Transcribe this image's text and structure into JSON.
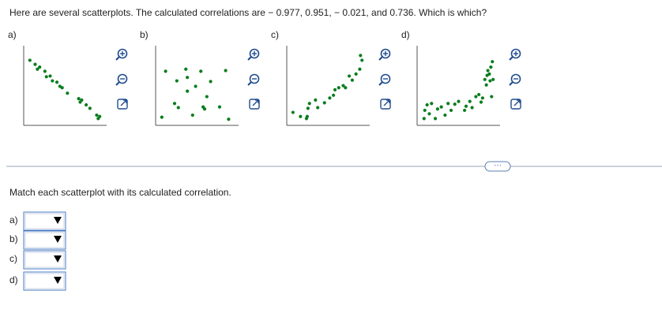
{
  "question": "Here are several scatterplots. The calculated correlations are − 0.977, 0.951, − 0.021, and 0.736. Which is which?",
  "plots": [
    {
      "label": "a)",
      "xlim": [
        0,
        10
      ],
      "ylim": [
        0,
        10
      ],
      "x": [
        0.3,
        1,
        1.3,
        1.6,
        2.3,
        2.5,
        3,
        3.3,
        3.9,
        4.3,
        4.6,
        5.3,
        6.8,
        7,
        7.2,
        7.8,
        8.3,
        9.2,
        9.4,
        9.6
      ],
      "y": [
        8.8,
        8.2,
        7.5,
        7.8,
        7.2,
        6.4,
        6.5,
        5.8,
        5.6,
        5,
        4.8,
        4,
        3.2,
        2.7,
        3,
        2.3,
        1.8,
        0.8,
        0.3,
        0.6
      ]
    },
    {
      "label": "b)",
      "xlim": [
        0,
        10
      ],
      "ylim": [
        0,
        10
      ],
      "x": [
        0.3,
        0.8,
        2.3,
        2.5,
        3.5,
        3.7,
        3.7,
        4.4,
        4.8,
        5.5,
        5.8,
        6.3,
        6.8,
        8,
        8.8,
        9.2,
        6,
        2
      ],
      "y": [
        0.5,
        7.2,
        5.8,
        1.9,
        7.5,
        6.3,
        4.3,
        0.8,
        5,
        7.2,
        2,
        3.5,
        5.7,
        2,
        7.3,
        0.2,
        1.7,
        2.5
      ]
    },
    {
      "label": "c)",
      "xlim": [
        0,
        10
      ],
      "ylim": [
        0,
        10
      ],
      "x": [
        0.3,
        1.3,
        2.1,
        2.2,
        2.3,
        2.5,
        3.3,
        3.6,
        4.5,
        5.2,
        5.7,
        5.9,
        6.4,
        7,
        7.3,
        7.8,
        8.2,
        8.7,
        9.2,
        9.5,
        9.3
      ],
      "y": [
        1.2,
        0.6,
        0.3,
        0.6,
        1.8,
        2.5,
        3,
        1.9,
        2.6,
        3.3,
        3.7,
        4.5,
        4.8,
        5.1,
        4.8,
        6.5,
        5.9,
        6.8,
        7.5,
        8.8,
        9.5
      ]
    },
    {
      "label": "d)",
      "xlim": [
        0,
        10
      ],
      "ylim": [
        0,
        10
      ],
      "x": [
        0.4,
        0.5,
        0.8,
        1.1,
        1.4,
        1.9,
        2.2,
        2.7,
        3.2,
        3.6,
        4,
        4.5,
        5,
        5.8,
        6,
        6.5,
        6.8,
        7.3,
        7.7,
        8,
        8.2,
        8.5,
        8.8,
        8.9,
        9.1,
        9.3,
        9.5,
        9.6,
        8.7,
        9.2,
        9.4
      ],
      "y": [
        0.3,
        1.5,
        2.3,
        1,
        2.5,
        0.3,
        1.7,
        2,
        0.8,
        2.5,
        1.5,
        2.4,
        2.8,
        1.5,
        2.1,
        2.8,
        1.9,
        3.5,
        3.8,
        2.7,
        3.3,
        6,
        6.6,
        7.3,
        6.8,
        7.8,
        8.6,
        6,
        5.2,
        5.8,
        3.5
      ]
    }
  ],
  "instruction": "Match each scatterplot with its calculated correlation.",
  "answers": [
    {
      "label": "a)"
    },
    {
      "label": "b)"
    },
    {
      "label": "c)"
    },
    {
      "label": "d)"
    }
  ]
}
